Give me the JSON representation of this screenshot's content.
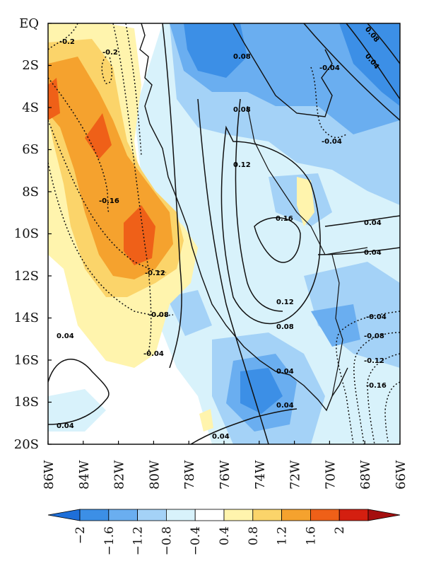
{
  "map": {
    "lat_labels": [
      "EQ",
      "2S",
      "4S",
      "6S",
      "8S",
      "10S",
      "12S",
      "14S",
      "16S",
      "18S",
      "20S"
    ],
    "lon_labels": [
      "86W",
      "84W",
      "82W",
      "80W",
      "78W",
      "76W",
      "74W",
      "72W",
      "70W",
      "68W",
      "66W"
    ],
    "lat_range": [
      -20,
      0
    ],
    "lon_range": [
      -86,
      -66
    ],
    "contour_labels": [
      "-0.2",
      "-0.2",
      "-0.16",
      "-0.12",
      "-0.08",
      "-0.04",
      "-0.04",
      "-0.04",
      "-0.04",
      "-0.08",
      "-0.12",
      "-0.16",
      "0.08",
      "0.08",
      "0.12",
      "0.16",
      "0.12",
      "0.08",
      "0.04",
      "0.04",
      "0.04",
      "0.04",
      "0.04",
      "0.04",
      "0.04",
      "0.08",
      "0.04"
    ],
    "contour_style": {
      "positive": "solid",
      "negative": "dotted"
    }
  },
  "colorbar": {
    "levels": [
      "−2",
      "−1.6",
      "−1.2",
      "−0.8",
      "−0.4",
      "0.4",
      "0.8",
      "1.2",
      "1.6",
      "2"
    ],
    "colors": [
      "#1e6fd9",
      "#3c8fe6",
      "#6aaef0",
      "#a4d2f7",
      "#d8f2fb",
      "#ffffff",
      "#fff4ad",
      "#fbd46a",
      "#f5a22e",
      "#ef6018",
      "#d41f10",
      "#a50f0f"
    ],
    "extend": "both"
  }
}
